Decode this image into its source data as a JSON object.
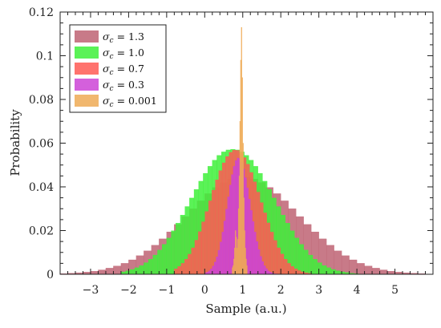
{
  "chart_data": {
    "type": "bar",
    "xlabel": "Sample (a.u.)",
    "ylabel": "Probability",
    "xlim": [
      -3.8,
      6.0
    ],
    "ylim": [
      0,
      0.12
    ],
    "x_ticks": [
      -3,
      -2,
      -1,
      0,
      1,
      2,
      3,
      4,
      5
    ],
    "x_tick_labels": [
      "−3",
      "−2",
      "−1",
      "0",
      "1",
      "2",
      "3",
      "4",
      "5"
    ],
    "y_ticks": [
      0,
      0.02,
      0.04,
      0.06,
      0.08,
      0.1,
      0.12
    ],
    "y_tick_labels": [
      "0",
      "0.02",
      "0.04",
      "0.06",
      "0.08",
      "0.1",
      "0.12"
    ],
    "legend_position": "top-left",
    "grid": false,
    "series": [
      {
        "name": "σc = 1.3",
        "label_main": "σ",
        "label_sub": "c",
        "label_value": " = 1.3",
        "color": "#be6373",
        "bin_width": 0.2,
        "x": [
          -3.7,
          -3.5,
          -3.3,
          -3.1,
          -2.9,
          -2.7,
          -2.5,
          -2.3,
          -2.1,
          -1.9,
          -1.7,
          -1.5,
          -1.3,
          -1.1,
          -0.9,
          -0.7,
          -0.5,
          -0.3,
          -0.1,
          0.1,
          0.3,
          0.5,
          0.7,
          0.9,
          1.1,
          1.3,
          1.5,
          1.7,
          1.9,
          2.1,
          2.3,
          2.5,
          2.7,
          2.9,
          3.1,
          3.3,
          3.5,
          3.7,
          3.9,
          4.1,
          4.3,
          4.5,
          4.7,
          4.9,
          5.1,
          5.3,
          5.5,
          5.7
        ],
        "values": [
          0.0003,
          0.0005,
          0.0007,
          0.001,
          0.0014,
          0.002,
          0.0028,
          0.0038,
          0.005,
          0.0066,
          0.0085,
          0.0107,
          0.0133,
          0.0162,
          0.0194,
          0.0228,
          0.0264,
          0.03,
          0.0336,
          0.0369,
          0.0397,
          0.042,
          0.0436,
          0.0444,
          0.0444,
          0.0436,
          0.042,
          0.0397,
          0.0369,
          0.0336,
          0.03,
          0.0264,
          0.0228,
          0.0194,
          0.0162,
          0.0133,
          0.0107,
          0.0085,
          0.0066,
          0.005,
          0.0038,
          0.0028,
          0.002,
          0.0014,
          0.001,
          0.0007,
          0.0005,
          0.0003
        ]
      },
      {
        "name": "σc = 1.0",
        "label_main": "σ",
        "label_sub": "c",
        "label_value": " = 1.0",
        "color": "#3ef03a",
        "bin_width": 0.12,
        "x": [
          -2.14,
          -2.02,
          -1.9,
          -1.78,
          -1.66,
          -1.54,
          -1.42,
          -1.3,
          -1.18,
          -1.06,
          -0.94,
          -0.82,
          -0.7,
          -0.58,
          -0.46,
          -0.34,
          -0.22,
          -0.1,
          0.02,
          0.14,
          0.26,
          0.38,
          0.5,
          0.62,
          0.74,
          0.86,
          0.98,
          1.1,
          1.22,
          1.34,
          1.46,
          1.58,
          1.7,
          1.82,
          1.94,
          2.06,
          2.18,
          2.3,
          2.42,
          2.54,
          2.66,
          2.78,
          2.9,
          3.02,
          3.14,
          3.26,
          3.38,
          3.5,
          3.62,
          3.74,
          3.86,
          3.98
        ],
        "values": [
          0.0011,
          0.0016,
          0.0022,
          0.003,
          0.004,
          0.0053,
          0.0069,
          0.0088,
          0.0111,
          0.0137,
          0.0166,
          0.0199,
          0.0234,
          0.0271,
          0.031,
          0.0349,
          0.0388,
          0.0426,
          0.0462,
          0.0494,
          0.0522,
          0.0544,
          0.056,
          0.0569,
          0.0572,
          0.0569,
          0.056,
          0.0544,
          0.0522,
          0.0494,
          0.0462,
          0.0426,
          0.0388,
          0.0349,
          0.031,
          0.0271,
          0.0234,
          0.0199,
          0.0166,
          0.0137,
          0.0111,
          0.0088,
          0.0069,
          0.0053,
          0.004,
          0.003,
          0.0022,
          0.0016,
          0.0011,
          0.0008,
          0.0005,
          0.0003
        ]
      },
      {
        "name": "σc = 0.7",
        "label_main": "σ",
        "label_sub": "c",
        "label_value": " = 0.7",
        "color": "#ff5a55",
        "bin_width": 0.09,
        "x": [
          -0.755,
          -0.665,
          -0.575,
          -0.485,
          -0.395,
          -0.305,
          -0.215,
          -0.125,
          -0.035,
          0.055,
          0.145,
          0.235,
          0.325,
          0.415,
          0.505,
          0.595,
          0.685,
          0.775,
          0.865,
          0.955,
          1.045,
          1.135,
          1.225,
          1.315,
          1.405,
          1.495,
          1.585,
          1.675,
          1.765,
          1.855,
          1.945,
          2.035,
          2.125,
          2.215,
          2.305,
          2.395,
          2.485,
          2.575,
          2.665,
          2.755
        ],
        "values": [
          0.0025,
          0.0036,
          0.005,
          0.0069,
          0.0092,
          0.0121,
          0.0156,
          0.0195,
          0.024,
          0.0287,
          0.0336,
          0.0385,
          0.0432,
          0.0474,
          0.051,
          0.0539,
          0.0558,
          0.0568,
          0.0567,
          0.0555,
          0.0534,
          0.0504,
          0.0466,
          0.0423,
          0.0376,
          0.0328,
          0.0281,
          0.0235,
          0.0193,
          0.0155,
          0.0121,
          0.0093,
          0.0069,
          0.005,
          0.0036,
          0.0025,
          0.0017,
          0.0011,
          0.0007,
          0.0004
        ]
      },
      {
        "name": "σc = 0.3",
        "label_main": "σ",
        "label_sub": "c",
        "label_value": " = 0.3",
        "color": "#cc44d6",
        "bin_width": 0.05,
        "x": [
          0.025,
          0.075,
          0.125,
          0.175,
          0.225,
          0.275,
          0.325,
          0.375,
          0.425,
          0.475,
          0.525,
          0.575,
          0.625,
          0.675,
          0.725,
          0.775,
          0.825,
          0.875,
          0.925,
          0.975,
          1.025,
          1.075,
          1.125,
          1.175,
          1.225,
          1.275,
          1.325,
          1.375,
          1.425,
          1.475,
          1.525,
          1.575,
          1.625,
          1.675,
          1.725,
          1.775,
          1.825,
          1.875,
          1.925
        ],
        "values": [
          0.0006,
          0.001,
          0.0016,
          0.0025,
          0.0038,
          0.0056,
          0.008,
          0.011,
          0.0148,
          0.0193,
          0.0244,
          0.0298,
          0.0354,
          0.0408,
          0.0456,
          0.0494,
          0.052,
          0.0532,
          0.0529,
          0.0512,
          0.0482,
          0.0442,
          0.0395,
          0.0344,
          0.0292,
          0.0241,
          0.0193,
          0.015,
          0.0113,
          0.0082,
          0.0058,
          0.0039,
          0.0026,
          0.0016,
          0.001,
          0.0006,
          0.0003,
          0.0002,
          0.0001
        ]
      },
      {
        "name": "σc = 0.001",
        "label_main": "σ",
        "label_sub": "c",
        "label_value": " = 0.001",
        "color": "#eeaa55",
        "bin_width": 0.02,
        "x": [
          0.73,
          0.75,
          0.77,
          0.79,
          0.81,
          0.83,
          0.85,
          0.87,
          0.89,
          0.91,
          0.93,
          0.95,
          0.97,
          0.99,
          1.01,
          1.03,
          1.05,
          1.07,
          1.09,
          1.11
        ],
        "values": [
          0.003,
          0.004,
          0.007,
          0.012,
          0.02,
          0.017,
          0.012,
          0.016,
          0.03,
          0.045,
          0.07,
          0.098,
          0.113,
          0.09,
          0.06,
          0.035,
          0.02,
          0.012,
          0.007,
          0.004
        ]
      }
    ]
  }
}
